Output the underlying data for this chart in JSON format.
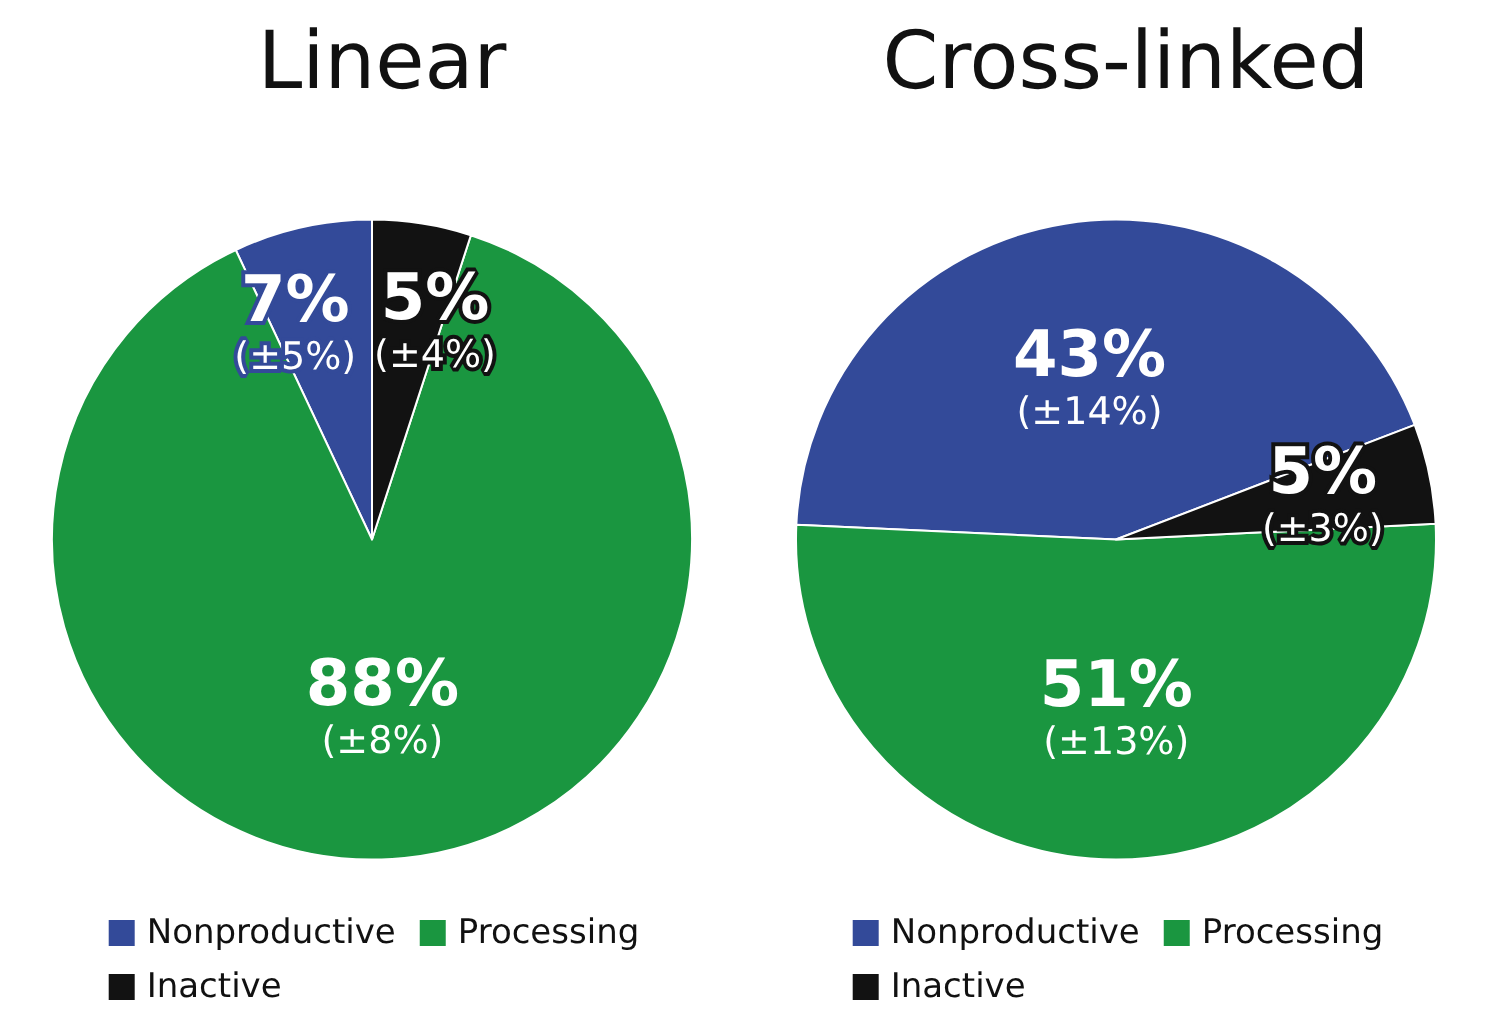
{
  "chart_data": [
    {
      "type": "pie",
      "title": "Linear",
      "categories": [
        "Nonproductive",
        "Processing",
        "Inactive"
      ],
      "values": [
        7,
        88,
        5
      ],
      "colors": [
        "#334a99",
        "#1a9640",
        "#121212"
      ],
      "value_labels": [
        "7% (±5%)",
        "88% (±8%)",
        "5% (±4%)"
      ],
      "legend": "bottom"
    },
    {
      "type": "pie",
      "title": "Cross-linked",
      "categories": [
        "Nonproductive",
        "Processing",
        "Inactive"
      ],
      "values": [
        43,
        51,
        5
      ],
      "colors": [
        "#334a99",
        "#1a9640",
        "#121212"
      ],
      "value_labels": [
        "43% (±14%)",
        "51% (±13%)",
        "5% (±3%)"
      ],
      "legend": "bottom"
    }
  ]
}
